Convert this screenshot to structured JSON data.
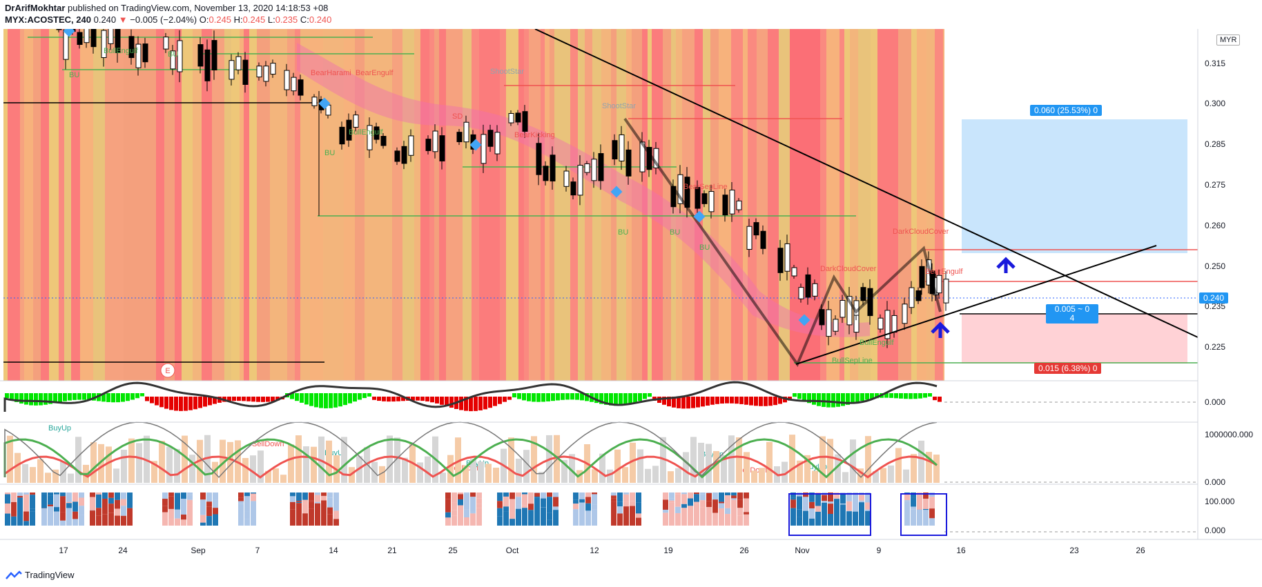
{
  "header": {
    "author": "DrArifMokhtar",
    "published": "published on TradingView.com, November 13, 2020 14:18:53 +08",
    "symbol": "MYX:ACOSTEC, 240",
    "last": "0.240",
    "change": "−0.005 (−2.04%)",
    "o_label": "O:",
    "o_val": "0.245",
    "h_label": "H:",
    "h_val": "0.245",
    "l_label": "L:",
    "l_val": "0.235",
    "c_label": "C:",
    "c_val": "0.240"
  },
  "currency": "MYR",
  "price_axis": [
    "0.315",
    "0.300",
    "0.285",
    "0.275",
    "0.260",
    "0.250",
    "0.235",
    "0.225"
  ],
  "last_price_tag": "0.240",
  "osc_axis": [
    "0.000"
  ],
  "vol_axis": [
    "1000000.000",
    "0.000"
  ],
  "pct_axis": [
    "100.000",
    "0.000"
  ],
  "time_axis": [
    "17",
    "24",
    "Sep",
    "7",
    "14",
    "21",
    "25",
    "Oct",
    "12",
    "19",
    "26",
    "Nov",
    "9",
    "16",
    "23",
    "26"
  ],
  "position": {
    "target_label": "0.060 (25.53%) 0",
    "stop_label": "0.015 (6.38%) 0",
    "mid_label_1": "0.005 ~ 0",
    "mid_label_2": "4"
  },
  "patterns": [
    {
      "text": "BU",
      "color": "#4caf50"
    },
    {
      "text": "BullEngulf",
      "color": "#4caf50"
    },
    {
      "text": "BearHarami",
      "color": "#ef5350"
    },
    {
      "text": "BearEngulf",
      "color": "#ef5350"
    },
    {
      "text": "ShootStar",
      "color": "#90a4ae"
    },
    {
      "text": "SD",
      "color": "#ef5350"
    },
    {
      "text": "BearKicking",
      "color": "#ef5350"
    },
    {
      "text": "BearSepLine",
      "color": "#ef5350"
    },
    {
      "text": "DarkCloudCover",
      "color": "#ef5350"
    },
    {
      "text": "BullSepLine",
      "color": "#4caf50"
    },
    {
      "text": "BuyUp",
      "color": "#26a69a"
    },
    {
      "text": "SellDown",
      "color": "#ef5350"
    }
  ],
  "earnings_marker": "E",
  "footer": {
    "brand": "TradingView"
  },
  "colors": {
    "up": "#ffffff",
    "down": "#000000",
    "accent": "#2962ff",
    "target": "#bbdefb",
    "stop": "#ffcdd2"
  }
}
